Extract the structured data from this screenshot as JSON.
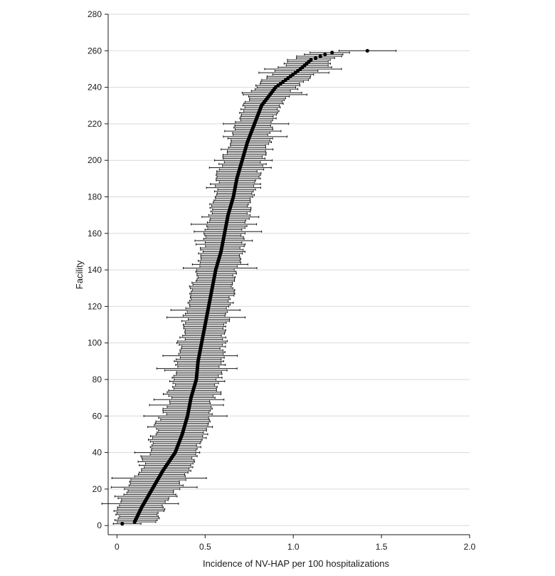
{
  "chart_data": {
    "type": "scatter",
    "subtype": "caterpillar / forest plot with 95% CI whiskers",
    "title": "",
    "xlabel": "Incidence of NV-HAP per 100 hospitalizations",
    "ylabel": "Facility",
    "xlim": [
      -0.05,
      2.0
    ],
    "ylim": [
      -5,
      280
    ],
    "xticks": [
      "0",
      "0.5",
      "1.0",
      "1.5",
      "2.0"
    ],
    "yticks": [
      "0",
      "20",
      "40",
      "60",
      "80",
      "100",
      "120",
      "140",
      "160",
      "180",
      "200",
      "220",
      "240",
      "260",
      "280"
    ],
    "grid": "horizontal",
    "n_facilities": 260,
    "point_color": "#000000",
    "ci_color": "#1a1a1a",
    "anchor_points": [
      {
        "rank": 1,
        "estimate": 0.03,
        "lower": -0.02,
        "upper": 0.15
      },
      {
        "rank": 2,
        "estimate": 0.1,
        "lower": 0.0,
        "upper": 0.22
      },
      {
        "rank": 10,
        "estimate": 0.14,
        "lower": 0.0,
        "upper": 0.26
      },
      {
        "rank": 20,
        "estimate": 0.2,
        "lower": 0.05,
        "upper": 0.35
      },
      {
        "rank": 30,
        "estimate": 0.26,
        "lower": 0.13,
        "upper": 0.4
      },
      {
        "rank": 40,
        "estimate": 0.33,
        "lower": 0.17,
        "upper": 0.45
      },
      {
        "rank": 50,
        "estimate": 0.37,
        "lower": 0.2,
        "upper": 0.5
      },
      {
        "rank": 60,
        "estimate": 0.4,
        "lower": 0.26,
        "upper": 0.52
      },
      {
        "rank": 70,
        "estimate": 0.42,
        "lower": 0.3,
        "upper": 0.55
      },
      {
        "rank": 80,
        "estimate": 0.45,
        "lower": 0.32,
        "upper": 0.58
      },
      {
        "rank": 90,
        "estimate": 0.46,
        "lower": 0.34,
        "upper": 0.6
      },
      {
        "rank": 100,
        "estimate": 0.48,
        "lower": 0.37,
        "upper": 0.6
      },
      {
        "rank": 110,
        "estimate": 0.5,
        "lower": 0.38,
        "upper": 0.62
      },
      {
        "rank": 120,
        "estimate": 0.52,
        "lower": 0.4,
        "upper": 0.64
      },
      {
        "rank": 130,
        "estimate": 0.54,
        "lower": 0.42,
        "upper": 0.66
      },
      {
        "rank": 140,
        "estimate": 0.56,
        "lower": 0.46,
        "upper": 0.68
      },
      {
        "rank": 150,
        "estimate": 0.59,
        "lower": 0.48,
        "upper": 0.71
      },
      {
        "rank": 160,
        "estimate": 0.61,
        "lower": 0.5,
        "upper": 0.72
      },
      {
        "rank": 170,
        "estimate": 0.63,
        "lower": 0.53,
        "upper": 0.74
      },
      {
        "rank": 180,
        "estimate": 0.66,
        "lower": 0.55,
        "upper": 0.77
      },
      {
        "rank": 190,
        "estimate": 0.68,
        "lower": 0.57,
        "upper": 0.8
      },
      {
        "rank": 200,
        "estimate": 0.71,
        "lower": 0.6,
        "upper": 0.83
      },
      {
        "rank": 210,
        "estimate": 0.74,
        "lower": 0.64,
        "upper": 0.86
      },
      {
        "rank": 220,
        "estimate": 0.78,
        "lower": 0.68,
        "upper": 0.88
      },
      {
        "rank": 230,
        "estimate": 0.82,
        "lower": 0.72,
        "upper": 0.92
      },
      {
        "rank": 235,
        "estimate": 0.86,
        "lower": 0.76,
        "upper": 0.97
      },
      {
        "rank": 240,
        "estimate": 0.9,
        "lower": 0.78,
        "upper": 1.02
      },
      {
        "rank": 245,
        "estimate": 0.97,
        "lower": 0.84,
        "upper": 1.1
      },
      {
        "rank": 250,
        "estimate": 1.04,
        "lower": 0.92,
        "upper": 1.16
      },
      {
        "rank": 255,
        "estimate": 1.1,
        "lower": 0.98,
        "upper": 1.22
      },
      {
        "rank": 258,
        "estimate": 1.18,
        "lower": 1.06,
        "upper": 1.28
      },
      {
        "rank": 259,
        "estimate": 1.22,
        "lower": 1.08,
        "upper": 1.32
      },
      {
        "rank": 260,
        "estimate": 1.42,
        "lower": 1.26,
        "upper": 1.6
      }
    ]
  }
}
